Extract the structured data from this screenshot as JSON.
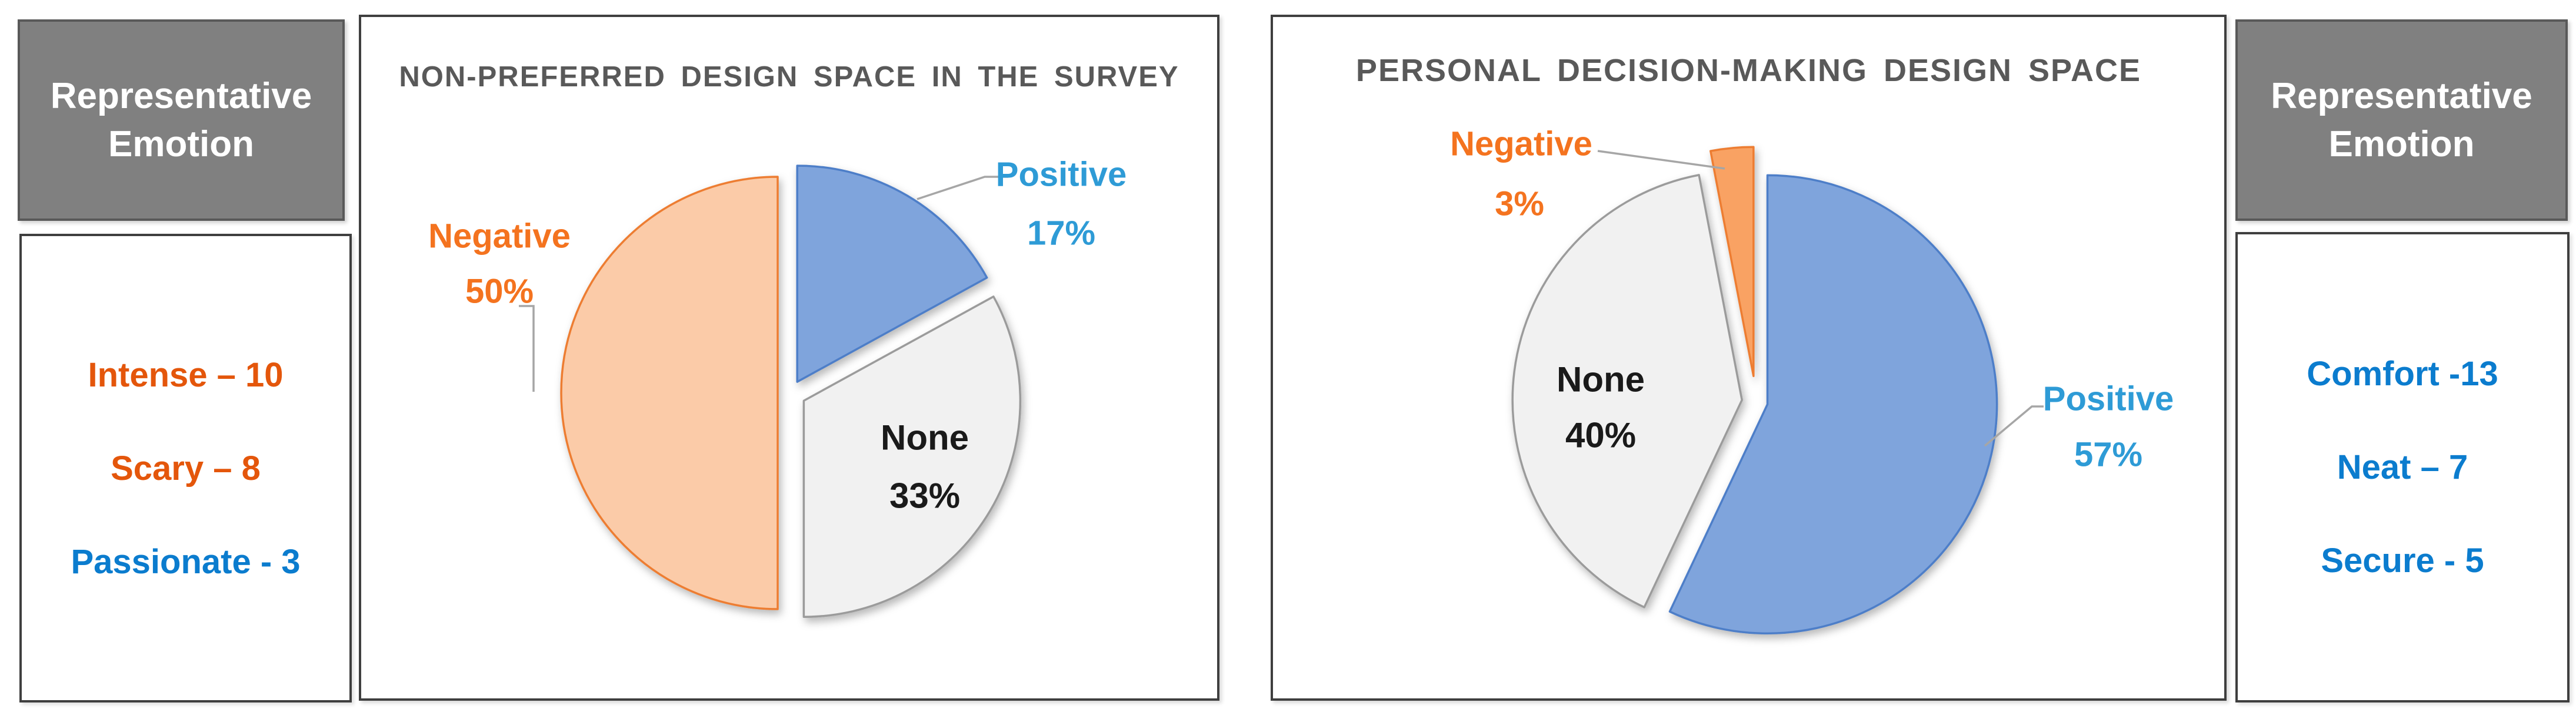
{
  "left_sidebar": {
    "header": "Representative Emotion",
    "items": [
      {
        "text": "Intense – 10",
        "color": "#E4560B"
      },
      {
        "text": "Scary – 8",
        "color": "#E4560B"
      },
      {
        "text": "Passionate - 3",
        "color": "#0B7CCE"
      }
    ]
  },
  "right_sidebar": {
    "header": "Representative Emotion",
    "items": [
      {
        "text": "Comfort -13",
        "color": "#0B7CCE"
      },
      {
        "text": "Neat – 7",
        "color": "#0B7CCE"
      },
      {
        "text": "Secure - 5",
        "color": "#0B7CCE"
      }
    ]
  },
  "chart_data": [
    {
      "type": "pie",
      "title": "NON-PREFERRED DESIGN SPACE IN THE SURVEY",
      "legend_position": "none",
      "start_angle_deg": 0,
      "direction": "clockwise",
      "slices": [
        {
          "label": "Positive",
          "value": 17,
          "pct_label": "17%",
          "fill": "#7FA4DC",
          "stroke": "#4D7EC8",
          "label_color": "#2E9BD6"
        },
        {
          "label": "None",
          "value": 33,
          "pct_label": "33%",
          "fill": "#F1F1F1",
          "stroke": "#9B9B9B",
          "label_color": "#1A1A1A"
        },
        {
          "label": "Negative",
          "value": 50,
          "pct_label": "50%",
          "fill": "#FBCBA8",
          "stroke": "#ED7D31",
          "label_color": "#F4731F"
        }
      ]
    },
    {
      "type": "pie",
      "title": "PERSONAL DECISION-MAKING DESIGN SPACE",
      "legend_position": "none",
      "start_angle_deg": 0,
      "direction": "clockwise",
      "slices": [
        {
          "label": "Positive",
          "value": 57,
          "pct_label": "57%",
          "fill": "#7FA4DC",
          "stroke": "#4D7EC8",
          "label_color": "#2E9BD6"
        },
        {
          "label": "None",
          "value": 40,
          "pct_label": "40%",
          "fill": "#F1F1F1",
          "stroke": "#9B9B9B",
          "label_color": "#1A1A1A"
        },
        {
          "label": "Negative",
          "value": 3,
          "pct_label": "3%",
          "fill": "#F9A263",
          "stroke": "#ED7D31",
          "label_color": "#F4731F"
        }
      ]
    }
  ]
}
